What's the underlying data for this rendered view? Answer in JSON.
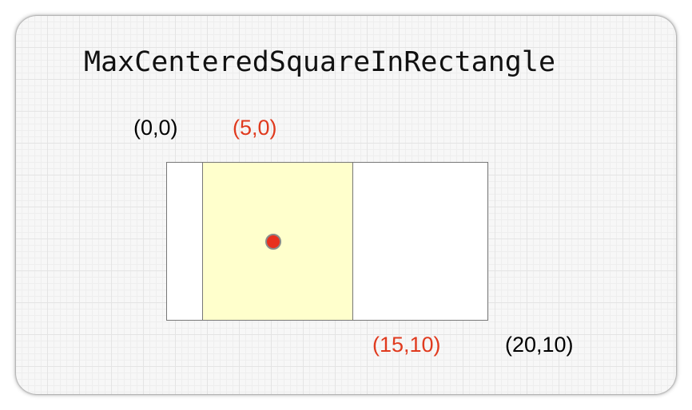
{
  "title": "MaxCenteredSquareInRectangle",
  "labels": {
    "rect_top_left": "(0,0)",
    "square_top_left": "(5,0)",
    "square_bottom_right": "(15,10)",
    "rect_bottom_right": "(20,10)"
  },
  "colors": {
    "highlight_text": "#e03a1e",
    "square_fill": "#ffffcc",
    "center_point": "#e8301e"
  }
}
